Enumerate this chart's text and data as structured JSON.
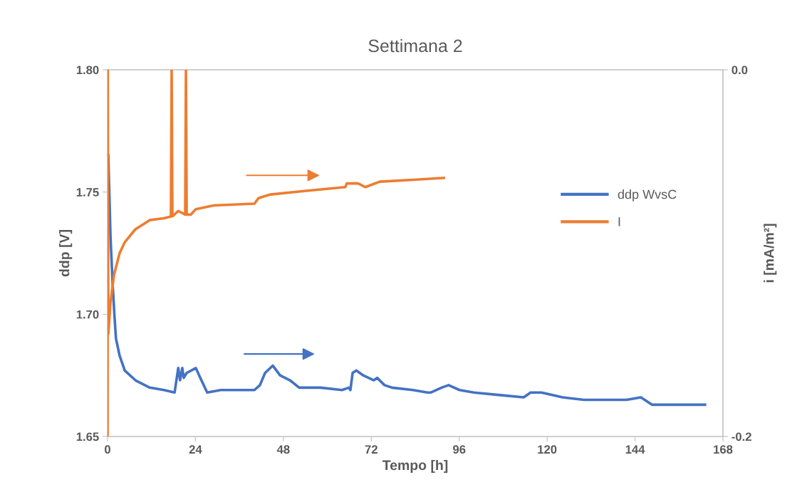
{
  "chart_data": {
    "type": "line",
    "title": "Settimana 2",
    "xlabel": "Tempo [h]",
    "ylabel": "ddp [V]",
    "y2label": "i [mA/m²]",
    "xlim": [
      0,
      168
    ],
    "xticks": [
      0,
      24,
      48,
      72,
      96,
      120,
      144,
      168
    ],
    "ylim": [
      1.65,
      1.8
    ],
    "yticks": [
      {
        "value": 1.65,
        "label": "1.65"
      },
      {
        "value": 1.7,
        "label": "1.70"
      },
      {
        "value": 1.75,
        "label": "1.75"
      },
      {
        "value": 1.8,
        "label": "1.80"
      }
    ],
    "y2lim": [
      -0.2,
      0.0
    ],
    "y2ticks": [
      {
        "value": -0.2,
        "label": "-0.2"
      },
      {
        "value": 0.0,
        "label": "0.0"
      }
    ],
    "grid": false,
    "legend": "right",
    "marker": "none",
    "line_style": "solid",
    "series": [
      {
        "name": "ddp WvsC",
        "color": "#4472c4",
        "x": [
          0.2,
          0.8,
          1.4,
          1.9,
          2.3,
          3.3,
          4.7,
          7.6,
          11.5,
          15.4,
          18.3,
          19.3,
          19.8,
          20.4,
          20.8,
          21.6,
          24.1,
          25.3,
          27.2,
          30.9,
          34.8,
          40.1,
          41.6,
          43.0,
          45.1,
          47.1,
          49.8,
          52.3,
          58.1,
          64.0,
          65.9,
          66.3,
          66.9,
          67.9,
          69.8,
          72.7,
          73.6,
          75.6,
          77.6,
          83.4,
          87.3,
          88.3,
          91.2,
          93.1,
          96.1,
          100.0,
          106.7,
          113.6,
          115.5,
          118.4,
          124.2,
          130.0,
          137.9,
          141.7,
          145.6,
          148.6,
          153.4,
          159.2,
          160.2,
          163.1
        ],
        "values": [
          1.765,
          1.732,
          1.712,
          1.699,
          1.69,
          1.683,
          1.677,
          1.673,
          1.67,
          1.669,
          1.668,
          1.678,
          1.673,
          1.678,
          1.674,
          1.676,
          1.678,
          1.674,
          1.668,
          1.669,
          1.669,
          1.669,
          1.671,
          1.676,
          1.679,
          1.675,
          1.673,
          1.67,
          1.67,
          1.669,
          1.67,
          1.669,
          1.676,
          1.677,
          1.675,
          1.673,
          1.674,
          1.671,
          1.67,
          1.669,
          1.668,
          1.668,
          1.67,
          1.671,
          1.669,
          1.668,
          1.667,
          1.666,
          1.668,
          1.668,
          1.666,
          1.665,
          1.665,
          1.665,
          1.666,
          1.663,
          1.663,
          1.663,
          1.663,
          1.663
        ]
      },
      {
        "name": "I",
        "color": "#ed7d31",
        "axis": "y2",
        "x": [
          0.0,
          0.05,
          0.2,
          0.8,
          1.75,
          3.3,
          4.7,
          7.6,
          11.5,
          15.4,
          17.3,
          17.5,
          17.7,
          19.3,
          21.2,
          21.4,
          21.6,
          22.7,
          24.1,
          29.0,
          40.1,
          41.2,
          44.5,
          54.2,
          64.9,
          65.3,
          68.4,
          70.4,
          74.3,
          83.4,
          91.8
        ],
        "values": [
          -0.2,
          0.0,
          -0.144,
          -0.127,
          -0.112,
          -0.1,
          -0.094,
          -0.087,
          -0.082,
          -0.081,
          -0.08,
          0.0,
          -0.08,
          -0.077,
          -0.079,
          0.0,
          -0.079,
          -0.079,
          -0.076,
          -0.074,
          -0.073,
          -0.07,
          -0.068,
          -0.066,
          -0.064,
          -0.062,
          -0.062,
          -0.064,
          -0.061,
          -0.06,
          -0.059
        ]
      }
    ]
  }
}
